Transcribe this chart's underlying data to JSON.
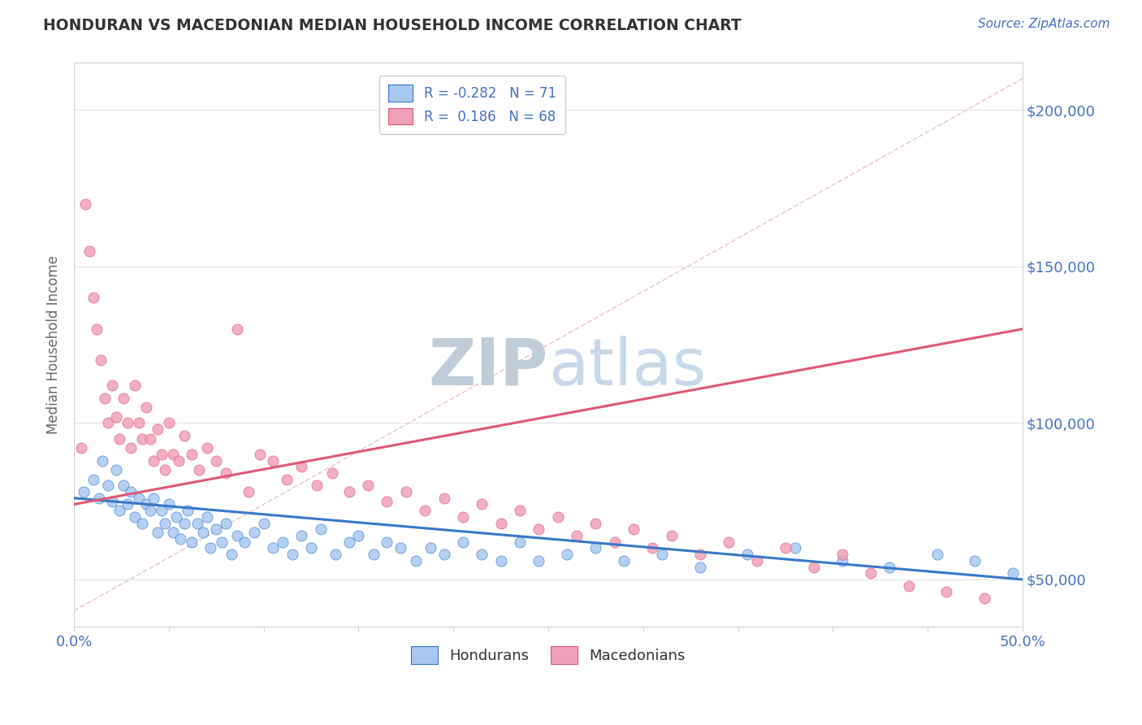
{
  "title": "HONDURAN VS MACEDONIAN MEDIAN HOUSEHOLD INCOME CORRELATION CHART",
  "source_text": "Source: ZipAtlas.com",
  "ylabel": "Median Household Income",
  "xlim": [
    0.0,
    0.5
  ],
  "ylim": [
    35000,
    215000
  ],
  "xticks": [
    0.0,
    0.05,
    0.1,
    0.15,
    0.2,
    0.25,
    0.3,
    0.35,
    0.4,
    0.45,
    0.5
  ],
  "ytick_positions": [
    50000,
    100000,
    150000,
    200000
  ],
  "ytick_labels": [
    "$50,000",
    "$100,000",
    "$150,000",
    "$200,000"
  ],
  "blue_color": "#a8c8f0",
  "pink_color": "#f0a0b8",
  "blue_line_color": "#3878c8",
  "pink_line_color": "#e05878",
  "legend_R_blue": "-0.282",
  "legend_N_blue": "71",
  "legend_R_pink": "0.186",
  "legend_N_pink": "68",
  "watermark_text": "ZIPatlas",
  "watermark_color": "#ccd8e8",
  "background_color": "#ffffff",
  "blue_scatter_x": [
    0.005,
    0.01,
    0.013,
    0.015,
    0.018,
    0.02,
    0.022,
    0.024,
    0.026,
    0.028,
    0.03,
    0.032,
    0.034,
    0.036,
    0.038,
    0.04,
    0.042,
    0.044,
    0.046,
    0.048,
    0.05,
    0.052,
    0.054,
    0.056,
    0.058,
    0.06,
    0.062,
    0.065,
    0.068,
    0.07,
    0.072,
    0.075,
    0.078,
    0.08,
    0.083,
    0.086,
    0.09,
    0.095,
    0.1,
    0.105,
    0.11,
    0.115,
    0.12,
    0.125,
    0.13,
    0.138,
    0.145,
    0.15,
    0.158,
    0.165,
    0.172,
    0.18,
    0.188,
    0.195,
    0.205,
    0.215,
    0.225,
    0.235,
    0.245,
    0.26,
    0.275,
    0.29,
    0.31,
    0.33,
    0.355,
    0.38,
    0.405,
    0.43,
    0.455,
    0.475,
    0.495
  ],
  "blue_scatter_y": [
    78000,
    82000,
    76000,
    88000,
    80000,
    75000,
    85000,
    72000,
    80000,
    74000,
    78000,
    70000,
    76000,
    68000,
    74000,
    72000,
    76000,
    65000,
    72000,
    68000,
    74000,
    65000,
    70000,
    63000,
    68000,
    72000,
    62000,
    68000,
    65000,
    70000,
    60000,
    66000,
    62000,
    68000,
    58000,
    64000,
    62000,
    65000,
    68000,
    60000,
    62000,
    58000,
    64000,
    60000,
    66000,
    58000,
    62000,
    64000,
    58000,
    62000,
    60000,
    56000,
    60000,
    58000,
    62000,
    58000,
    56000,
    62000,
    56000,
    58000,
    60000,
    56000,
    58000,
    54000,
    58000,
    60000,
    56000,
    54000,
    58000,
    56000,
    52000
  ],
  "pink_scatter_x": [
    0.004,
    0.006,
    0.008,
    0.01,
    0.012,
    0.014,
    0.016,
    0.018,
    0.02,
    0.022,
    0.024,
    0.026,
    0.028,
    0.03,
    0.032,
    0.034,
    0.036,
    0.038,
    0.04,
    0.042,
    0.044,
    0.046,
    0.048,
    0.05,
    0.052,
    0.055,
    0.058,
    0.062,
    0.066,
    0.07,
    0.075,
    0.08,
    0.086,
    0.092,
    0.098,
    0.105,
    0.112,
    0.12,
    0.128,
    0.136,
    0.145,
    0.155,
    0.165,
    0.175,
    0.185,
    0.195,
    0.205,
    0.215,
    0.225,
    0.235,
    0.245,
    0.255,
    0.265,
    0.275,
    0.285,
    0.295,
    0.305,
    0.315,
    0.33,
    0.345,
    0.36,
    0.375,
    0.39,
    0.405,
    0.42,
    0.44,
    0.46,
    0.48
  ],
  "pink_scatter_y": [
    92000,
    170000,
    155000,
    140000,
    130000,
    120000,
    108000,
    100000,
    112000,
    102000,
    95000,
    108000,
    100000,
    92000,
    112000,
    100000,
    95000,
    105000,
    95000,
    88000,
    98000,
    90000,
    85000,
    100000,
    90000,
    88000,
    96000,
    90000,
    85000,
    92000,
    88000,
    84000,
    130000,
    78000,
    90000,
    88000,
    82000,
    86000,
    80000,
    84000,
    78000,
    80000,
    75000,
    78000,
    72000,
    76000,
    70000,
    74000,
    68000,
    72000,
    66000,
    70000,
    64000,
    68000,
    62000,
    66000,
    60000,
    64000,
    58000,
    62000,
    56000,
    60000,
    54000,
    58000,
    52000,
    48000,
    46000,
    44000
  ],
  "ref_line_x": [
    0.0,
    0.5
  ],
  "ref_line_y": [
    40000,
    210000
  ],
  "blue_trend_x": [
    0.0,
    0.5
  ],
  "blue_trend_y": [
    76000,
    50000
  ],
  "pink_trend_x": [
    0.0,
    0.5
  ],
  "pink_trend_y": [
    74000,
    130000
  ]
}
